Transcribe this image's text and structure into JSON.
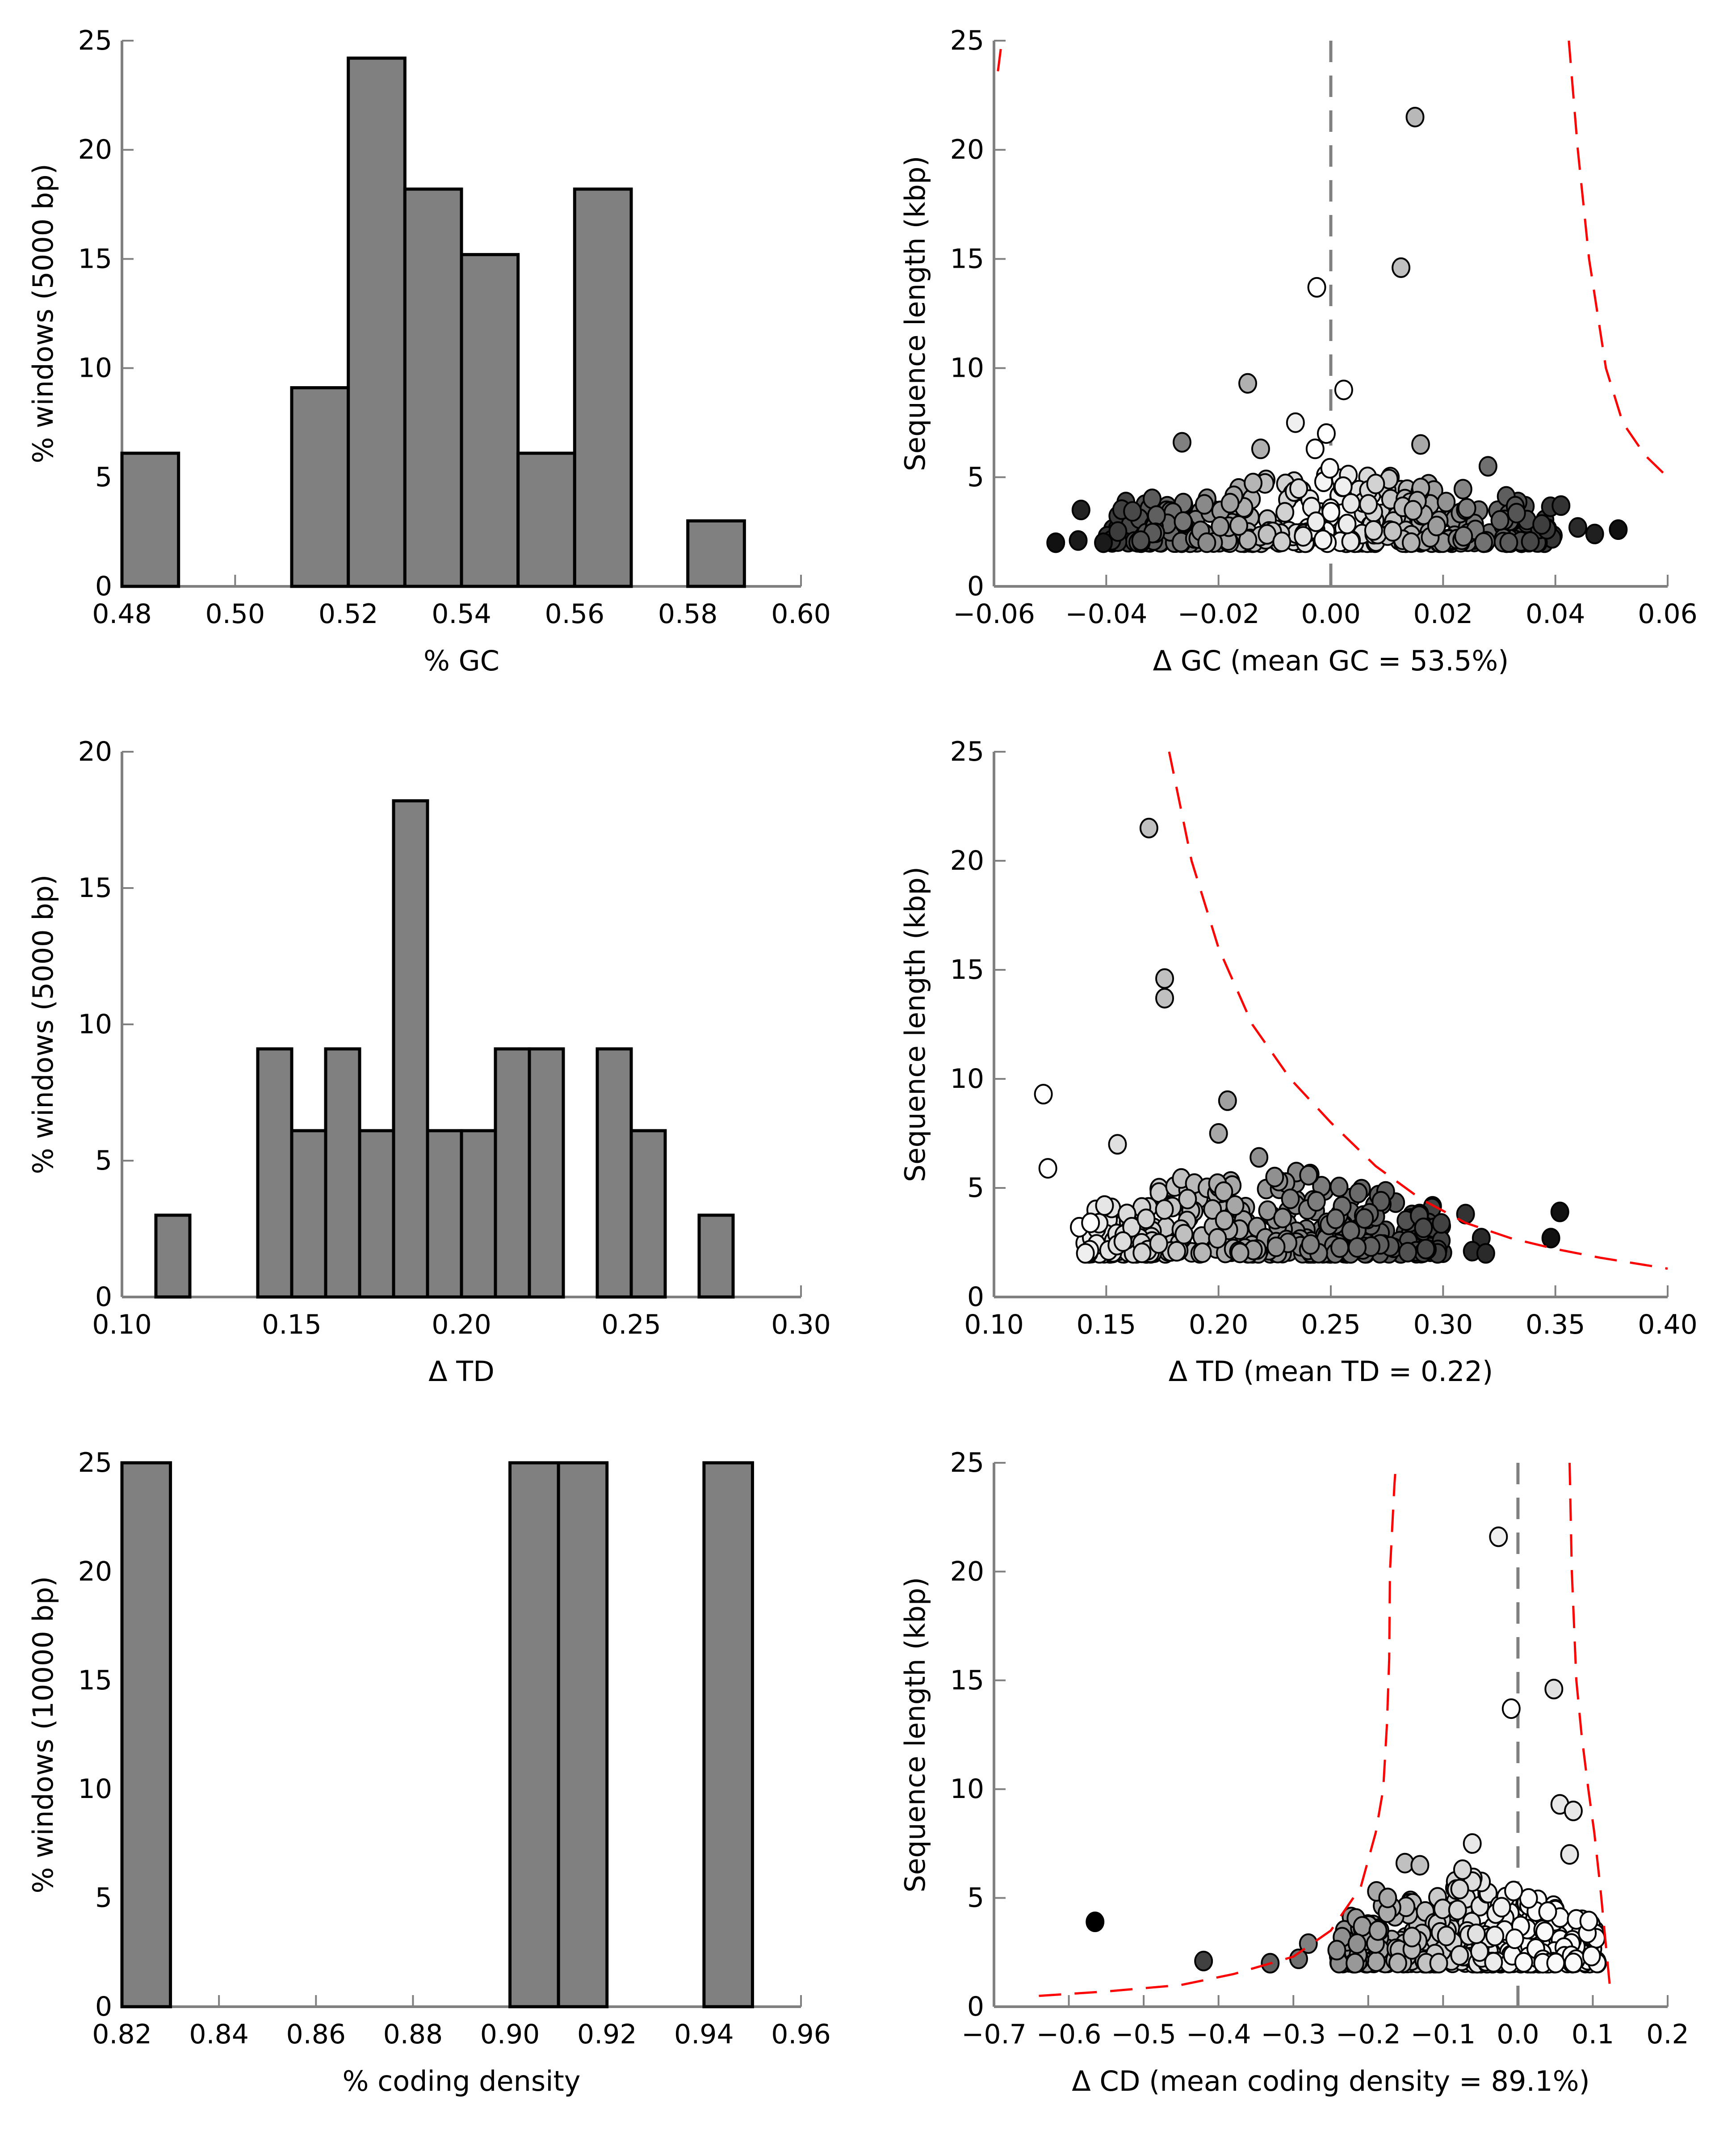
{
  "chart_data": [
    {
      "id": "gc_hist",
      "type": "bar",
      "xlabel": "% GC",
      "ylabel": "% windows (5000 bp)",
      "xlim": [
        0.48,
        0.6
      ],
      "ylim": [
        0,
        25
      ],
      "xticks": [
        "0.48",
        "0.50",
        "0.52",
        "0.54",
        "0.56",
        "0.58",
        "0.60"
      ],
      "xtick_values": [
        0.48,
        0.5,
        0.52,
        0.54,
        0.56,
        0.58,
        0.6
      ],
      "yticks": [
        "0",
        "5",
        "10",
        "15",
        "20",
        "25"
      ],
      "ytick_values": [
        0,
        5,
        10,
        15,
        20,
        25
      ],
      "bins": [
        {
          "x0": 0.48,
          "x1": 0.49,
          "value": 6.1
        },
        {
          "x0": 0.51,
          "x1": 0.52,
          "value": 9.1
        },
        {
          "x0": 0.52,
          "x1": 0.53,
          "value": 24.2
        },
        {
          "x0": 0.53,
          "x1": 0.54,
          "value": 18.2
        },
        {
          "x0": 0.54,
          "x1": 0.55,
          "value": 15.2
        },
        {
          "x0": 0.55,
          "x1": 0.56,
          "value": 6.1
        },
        {
          "x0": 0.56,
          "x1": 0.57,
          "value": 18.2
        },
        {
          "x0": 0.58,
          "x1": 0.59,
          "value": 3.0
        }
      ]
    },
    {
      "id": "gc_scatter",
      "type": "scatter",
      "xlabel": "Δ GC (mean GC = 53.5%)",
      "ylabel": "Sequence length (kbp)",
      "xlim": [
        -0.06,
        0.06
      ],
      "ylim": [
        0,
        25
      ],
      "xticks": [
        "−0.06",
        "−0.04",
        "−0.02",
        "0.00",
        "0.02",
        "0.04",
        "0.06"
      ],
      "xtick_values": [
        -0.06,
        -0.04,
        -0.02,
        0.0,
        0.02,
        0.04,
        0.06
      ],
      "yticks": [
        "0",
        "5",
        "10",
        "15",
        "20",
        "25"
      ],
      "ytick_values": [
        0,
        5,
        10,
        15,
        20,
        25
      ],
      "zero_line": true,
      "bound_curves": [
        {
          "points": [
            [
              -0.0593,
              23.6
            ],
            [
              -0.0586,
              25
            ]
          ]
        },
        {
          "points": [
            [
              0.0424,
              25
            ],
            [
              0.044,
              20
            ],
            [
              0.046,
              15
            ],
            [
              0.049,
              10
            ],
            [
              0.052,
              7.5
            ],
            [
              0.056,
              6
            ],
            [
              0.06,
              5
            ]
          ]
        }
      ],
      "highlight_points": [
        {
          "x": 0.015,
          "y": 21.5,
          "shade": "#b8b8b8"
        },
        {
          "x": 0.0125,
          "y": 14.6,
          "shade": "#c0c0c0"
        },
        {
          "x": -0.0025,
          "y": 13.7,
          "shade": "#ffffff"
        },
        {
          "x": -0.0148,
          "y": 9.3,
          "shade": "#b0b0b0"
        },
        {
          "x": 0.0023,
          "y": 9.0,
          "shade": "#ffffff"
        },
        {
          "x": -0.0063,
          "y": 7.5,
          "shade": "#f0f0f0"
        },
        {
          "x": -0.0008,
          "y": 7.0,
          "shade": "#ffffff"
        },
        {
          "x": -0.0265,
          "y": 6.6,
          "shade": "#808080"
        },
        {
          "x": 0.016,
          "y": 6.5,
          "shade": "#a8a8a8"
        },
        {
          "x": -0.0125,
          "y": 6.3,
          "shade": "#b0b0b0"
        },
        {
          "x": -0.0028,
          "y": 6.3,
          "shade": "#ffffff"
        },
        {
          "x": 0.028,
          "y": 5.5,
          "shade": "#707070"
        },
        {
          "x": -0.049,
          "y": 2.0,
          "shade": "#111111"
        },
        {
          "x": -0.045,
          "y": 2.1,
          "shade": "#1a1a1a"
        },
        {
          "x": -0.0445,
          "y": 3.5,
          "shade": "#222222"
        },
        {
          "x": -0.0405,
          "y": 2.0,
          "shade": "#1a1a1a"
        },
        {
          "x": 0.041,
          "y": 3.7,
          "shade": "#333333"
        },
        {
          "x": 0.044,
          "y": 2.7,
          "shade": "#2a2a2a"
        },
        {
          "x": 0.047,
          "y": 2.4,
          "shade": "#1f1f1f"
        },
        {
          "x": 0.0512,
          "y": 2.6,
          "shade": "#111111"
        }
      ],
      "cluster": {
        "x_range": [
          -0.04,
          0.04
        ],
        "y_range": [
          2.0,
          5.5
        ],
        "count": 380
      }
    },
    {
      "id": "td_hist",
      "type": "bar",
      "xlabel": "Δ TD",
      "ylabel": "% windows (5000 bp)",
      "xlim": [
        0.1,
        0.3
      ],
      "ylim": [
        0,
        20
      ],
      "xticks": [
        "0.10",
        "0.15",
        "0.20",
        "0.25",
        "0.30"
      ],
      "xtick_values": [
        0.1,
        0.15,
        0.2,
        0.25,
        0.3
      ],
      "yticks": [
        "0",
        "5",
        "10",
        "15",
        "20"
      ],
      "ytick_values": [
        0,
        5,
        10,
        15,
        20
      ],
      "bins": [
        {
          "x0": 0.11,
          "x1": 0.12,
          "value": 3.0
        },
        {
          "x0": 0.14,
          "x1": 0.15,
          "value": 9.1
        },
        {
          "x0": 0.15,
          "x1": 0.16,
          "value": 6.1
        },
        {
          "x0": 0.16,
          "x1": 0.17,
          "value": 9.1
        },
        {
          "x0": 0.17,
          "x1": 0.18,
          "value": 6.1
        },
        {
          "x0": 0.18,
          "x1": 0.19,
          "value": 18.2
        },
        {
          "x0": 0.19,
          "x1": 0.2,
          "value": 6.1
        },
        {
          "x0": 0.2,
          "x1": 0.21,
          "value": 6.1
        },
        {
          "x0": 0.21,
          "x1": 0.22,
          "value": 9.1
        },
        {
          "x0": 0.22,
          "x1": 0.23,
          "value": 9.1
        },
        {
          "x0": 0.24,
          "x1": 0.25,
          "value": 9.1
        },
        {
          "x0": 0.25,
          "x1": 0.26,
          "value": 6.1
        },
        {
          "x0": 0.27,
          "x1": 0.28,
          "value": 3.0
        }
      ]
    },
    {
      "id": "td_scatter",
      "type": "scatter",
      "xlabel": "Δ TD (mean TD = 0.22)",
      "ylabel": "Sequence length (kbp)",
      "xlim": [
        0.1,
        0.4
      ],
      "ylim": [
        0,
        25
      ],
      "xticks": [
        "0.10",
        "0.15",
        "0.20",
        "0.25",
        "0.30",
        "0.35",
        "0.40"
      ],
      "xtick_values": [
        0.1,
        0.15,
        0.2,
        0.25,
        0.3,
        0.35,
        0.4
      ],
      "yticks": [
        "0",
        "5",
        "10",
        "15",
        "20",
        "25"
      ],
      "ytick_values": [
        0,
        5,
        10,
        15,
        20,
        25
      ],
      "zero_line": false,
      "bound_curves": [
        {
          "points": [
            [
              0.178,
              25
            ],
            [
              0.188,
              20
            ],
            [
              0.2,
              16
            ],
            [
              0.215,
              12.5
            ],
            [
              0.232,
              10
            ],
            [
              0.25,
              8
            ],
            [
              0.27,
              6
            ],
            [
              0.29,
              4.5
            ],
            [
              0.31,
              3.4
            ],
            [
              0.33,
              2.7
            ],
            [
              0.35,
              2.2
            ],
            [
              0.37,
              1.8
            ],
            [
              0.4,
              1.3
            ]
          ]
        }
      ],
      "highlight_points": [
        {
          "x": 0.169,
          "y": 21.5,
          "shade": "#c0c0c0"
        },
        {
          "x": 0.176,
          "y": 14.6,
          "shade": "#c0c0c0"
        },
        {
          "x": 0.176,
          "y": 13.7,
          "shade": "#c0c0c0"
        },
        {
          "x": 0.122,
          "y": 9.3,
          "shade": "#ffffff"
        },
        {
          "x": 0.204,
          "y": 9.0,
          "shade": "#a0a0a0"
        },
        {
          "x": 0.2,
          "y": 7.5,
          "shade": "#a8a8a8"
        },
        {
          "x": 0.155,
          "y": 7.0,
          "shade": "#e0e0e0"
        },
        {
          "x": 0.124,
          "y": 5.9,
          "shade": "#ffffff"
        },
        {
          "x": 0.218,
          "y": 6.4,
          "shade": "#909090"
        },
        {
          "x": 0.225,
          "y": 5.5,
          "shade": "#909090"
        },
        {
          "x": 0.232,
          "y": 4.5,
          "shade": "#808080"
        },
        {
          "x": 0.265,
          "y": 3.6,
          "shade": "#606060"
        },
        {
          "x": 0.31,
          "y": 3.8,
          "shade": "#333333"
        },
        {
          "x": 0.317,
          "y": 2.7,
          "shade": "#2a2a2a"
        },
        {
          "x": 0.313,
          "y": 2.1,
          "shade": "#2a2a2a"
        },
        {
          "x": 0.319,
          "y": 2.0,
          "shade": "#2a2a2a"
        },
        {
          "x": 0.348,
          "y": 2.7,
          "shade": "#111111"
        },
        {
          "x": 0.352,
          "y": 3.9,
          "shade": "#111111"
        },
        {
          "x": 0.138,
          "y": 3.2,
          "shade": "#ffffff"
        },
        {
          "x": 0.143,
          "y": 3.4,
          "shade": "#ffffff"
        }
      ],
      "cluster": {
        "x_range": [
          0.14,
          0.3
        ],
        "y_range": [
          2.0,
          6.5
        ],
        "count": 380
      }
    },
    {
      "id": "cd_hist",
      "type": "bar",
      "xlabel": "% coding density",
      "ylabel": "% windows (10000 bp)",
      "xlim": [
        0.82,
        0.96
      ],
      "ylim": [
        0,
        25
      ],
      "xticks": [
        "0.82",
        "0.84",
        "0.86",
        "0.88",
        "0.90",
        "0.92",
        "0.94",
        "0.96"
      ],
      "xtick_values": [
        0.82,
        0.84,
        0.86,
        0.88,
        0.9,
        0.92,
        0.94,
        0.96
      ],
      "yticks": [
        "0",
        "5",
        "10",
        "15",
        "20",
        "25"
      ],
      "ytick_values": [
        0,
        5,
        10,
        15,
        20,
        25
      ],
      "bins": [
        {
          "x0": 0.82,
          "x1": 0.83,
          "value": 25
        },
        {
          "x0": 0.9,
          "x1": 0.91,
          "value": 25
        },
        {
          "x0": 0.91,
          "x1": 0.92,
          "value": 25
        },
        {
          "x0": 0.94,
          "x1": 0.95,
          "value": 25
        }
      ]
    },
    {
      "id": "cd_scatter",
      "type": "scatter",
      "xlabel": "Δ CD (mean coding density = 89.1%)",
      "ylabel": "Sequence length (kbp)",
      "xlim": [
        -0.7,
        0.2
      ],
      "ylim": [
        0,
        25
      ],
      "xticks": [
        "−0.7",
        "−0.6",
        "−0.5",
        "−0.4",
        "−0.3",
        "−0.2",
        "−0.1",
        "0.0",
        "0.1",
        "0.2"
      ],
      "xtick_values": [
        -0.7,
        -0.6,
        -0.5,
        -0.4,
        -0.3,
        -0.2,
        -0.1,
        0.0,
        0.1,
        0.2
      ],
      "yticks": [
        "0",
        "5",
        "10",
        "15",
        "20",
        "25"
      ],
      "ytick_values": [
        0,
        5,
        10,
        15,
        20,
        25
      ],
      "zero_line": true,
      "bound_curves": [
        {
          "points": [
            [
              -0.64,
              0.5
            ],
            [
              -0.55,
              0.7
            ],
            [
              -0.45,
              1.0
            ],
            [
              -0.38,
              1.5
            ],
            [
              -0.3,
              2.3
            ],
            [
              -0.25,
              3.5
            ],
            [
              -0.21,
              5.5
            ],
            [
              -0.19,
              8
            ],
            [
              -0.18,
              10
            ],
            [
              -0.175,
              13
            ],
            [
              -0.172,
              16
            ],
            [
              -0.171,
              20
            ],
            [
              -0.165,
              24
            ],
            [
              -0.163,
              25
            ]
          ]
        },
        {
          "points": [
            [
              0.069,
              25
            ],
            [
              0.072,
              20
            ],
            [
              0.078,
              15
            ],
            [
              0.085,
              12.5
            ],
            [
              0.094,
              10
            ],
            [
              0.102,
              8
            ],
            [
              0.11,
              5.5
            ],
            [
              0.117,
              3
            ],
            [
              0.124,
              0.5
            ]
          ]
        }
      ],
      "highlight_points": [
        {
          "x": -0.026,
          "y": 21.6,
          "shade": "#f0f0f0"
        },
        {
          "x": 0.048,
          "y": 14.6,
          "shade": "#e0e0e0"
        },
        {
          "x": -0.009,
          "y": 13.7,
          "shade": "#ffffff"
        },
        {
          "x": 0.056,
          "y": 9.3,
          "shade": "#e8e8e8"
        },
        {
          "x": 0.074,
          "y": 9.0,
          "shade": "#e8e8e8"
        },
        {
          "x": -0.061,
          "y": 7.5,
          "shade": "#e8e8e8"
        },
        {
          "x": 0.069,
          "y": 7.0,
          "shade": "#e8e8e8"
        },
        {
          "x": -0.151,
          "y": 6.6,
          "shade": "#c0c0c0"
        },
        {
          "x": -0.131,
          "y": 6.5,
          "shade": "#c0c0c0"
        },
        {
          "x": -0.074,
          "y": 6.3,
          "shade": "#d8d8d8"
        },
        {
          "x": -0.189,
          "y": 5.3,
          "shade": "#a8a8a8"
        },
        {
          "x": -0.174,
          "y": 5.0,
          "shade": "#a8a8a8"
        },
        {
          "x": -0.565,
          "y": 3.9,
          "shade": "#000000"
        },
        {
          "x": -0.42,
          "y": 2.1,
          "shade": "#404040"
        },
        {
          "x": -0.331,
          "y": 2.0,
          "shade": "#606060"
        },
        {
          "x": -0.293,
          "y": 2.2,
          "shade": "#707070"
        },
        {
          "x": -0.28,
          "y": 2.9,
          "shade": "#808080"
        },
        {
          "x": -0.242,
          "y": 2.6,
          "shade": "#909090"
        },
        {
          "x": -0.215,
          "y": 2.9,
          "shade": "#909090"
        },
        {
          "x": -0.187,
          "y": 3.5,
          "shade": "#a0a0a0"
        }
      ],
      "cluster": {
        "x_range": [
          -0.24,
          0.11
        ],
        "y_range": [
          2.0,
          6.0
        ],
        "count": 380
      }
    }
  ]
}
